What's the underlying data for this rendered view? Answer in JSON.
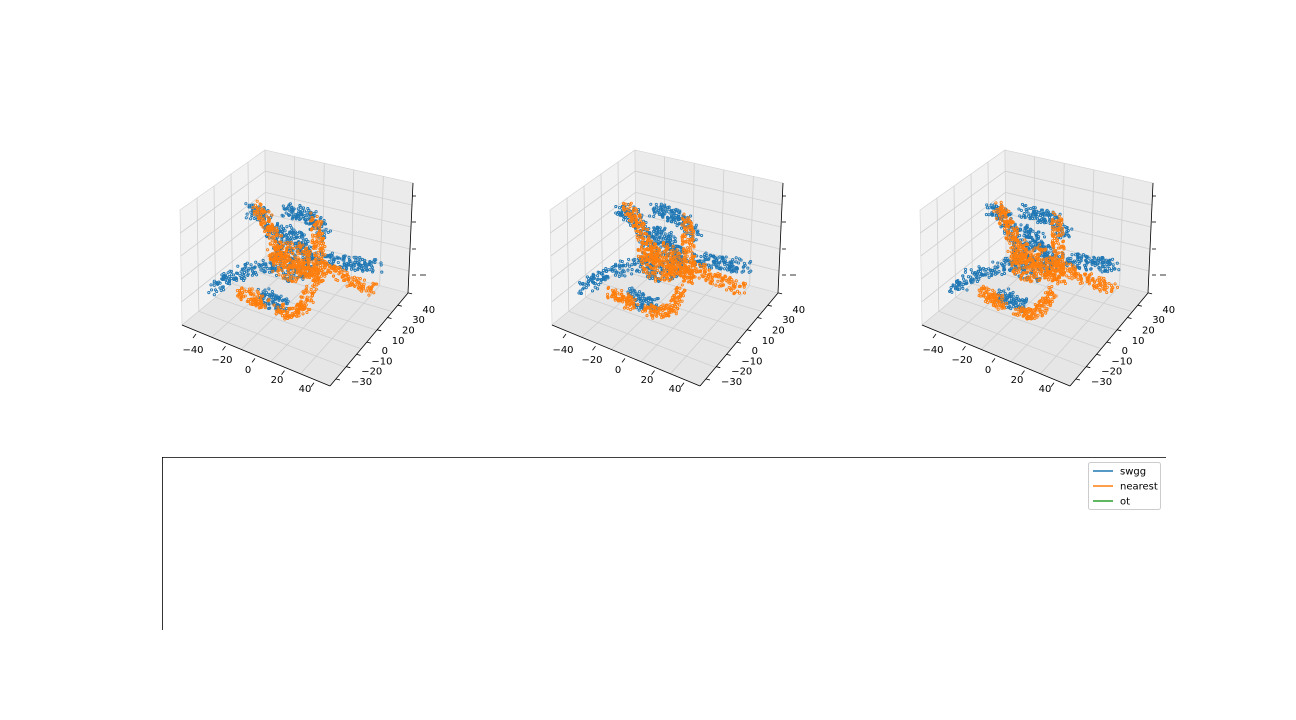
{
  "chart_data": [
    {
      "type": "scatter",
      "projection": "3d",
      "x_ticks": [
        "−40",
        "−20",
        "0",
        "20",
        "40"
      ],
      "y_ticks": [
        "−30",
        "−20",
        "−10",
        "0",
        "10",
        "20",
        "30",
        "40"
      ],
      "z_ticks": [],
      "series": [
        {
          "color": "#1f77b4"
        },
        {
          "color": "#ff7f0e"
        }
      ]
    },
    {
      "type": "scatter",
      "projection": "3d",
      "x_ticks": [
        "−40",
        "−20",
        "0",
        "20",
        "40"
      ],
      "y_ticks": [
        "−30",
        "−20",
        "−10",
        "0",
        "10",
        "20",
        "30",
        "40"
      ],
      "z_ticks": [],
      "series": [
        {
          "color": "#1f77b4"
        },
        {
          "color": "#ff7f0e"
        }
      ]
    },
    {
      "type": "scatter",
      "projection": "3d",
      "x_ticks": [
        "−40",
        "−20",
        "0",
        "20",
        "40"
      ],
      "y_ticks": [
        "−30",
        "−20",
        "−10",
        "0",
        "10",
        "20",
        "30",
        "40"
      ],
      "z_ticks": [],
      "series": [
        {
          "color": "#1f77b4"
        },
        {
          "color": "#ff7f0e"
        }
      ]
    },
    {
      "type": "line",
      "legend_position": "top-right",
      "series": [
        {
          "name": "swgg",
          "color": "#1f77b4",
          "values": []
        },
        {
          "name": "nearest",
          "color": "#ff7f0e",
          "values": []
        },
        {
          "name": "ot",
          "color": "#2ca02c",
          "values": []
        }
      ]
    }
  ]
}
